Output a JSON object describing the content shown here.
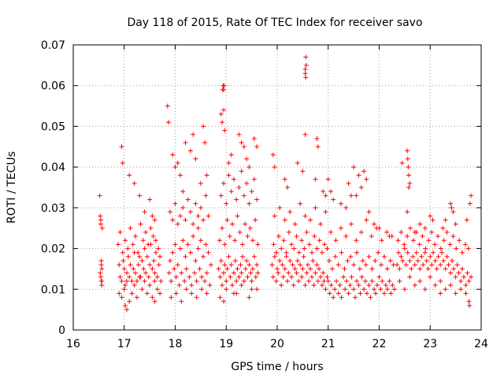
{
  "chart_data": {
    "type": "scatter",
    "title": "Day 118 of 2015, Rate Of TEC Index for receiver savo",
    "xlabel": "GPS time / hours",
    "ylabel": "ROTI / TECUs",
    "xlim": [
      16,
      24
    ],
    "ylim": [
      0,
      0.07
    ],
    "x_ticks": [
      "16",
      "17",
      "18",
      "19",
      "20",
      "21",
      "22",
      "23",
      "24"
    ],
    "y_ticks": [
      "0",
      "0.01",
      "0.02",
      "0.03",
      "0.04",
      "0.05",
      "0.06",
      "0.07"
    ],
    "grid": true,
    "marker": "+",
    "color": "#ff0000",
    "series": [
      {
        "x": [
          16.52,
          16.53,
          16.54,
          16.55,
          16.56,
          16.53,
          16.54,
          16.55,
          16.56,
          16.57,
          16.54,
          16.55,
          16.56,
          16.88,
          16.9,
          16.92,
          16.95,
          16.98,
          17.0,
          17.02,
          17.05,
          17.08,
          17.1,
          17.12,
          17.15,
          17.18,
          17.2,
          17.22,
          17.25,
          17.28,
          17.3,
          17.32,
          17.35,
          17.38,
          17.4,
          17.42,
          17.45,
          17.48,
          17.5,
          17.52,
          17.55,
          17.58,
          17.6,
          17.62,
          17.65,
          17.68,
          17.7,
          17.72,
          16.9,
          16.95,
          17.0,
          17.05,
          17.1,
          17.15,
          17.2,
          17.25,
          17.3,
          17.35,
          17.4,
          17.45,
          17.5,
          17.55,
          17.6,
          17.65,
          17.7,
          16.92,
          16.97,
          17.02,
          17.07,
          17.12,
          17.17,
          17.22,
          17.27,
          17.32,
          17.37,
          17.42,
          17.47,
          17.52,
          17.57,
          17.62,
          17.67,
          16.95,
          16.97,
          17.1,
          17.2,
          17.3,
          17.4,
          17.5,
          17.6,
          17.02,
          17.05,
          17.6,
          17.55,
          17.9,
          17.95,
          18.0,
          18.05,
          18.1,
          18.15,
          18.2,
          18.25,
          18.3,
          18.35,
          18.4,
          18.45,
          18.5,
          18.55,
          18.6,
          18.65,
          18.7,
          17.88,
          17.92,
          17.98,
          18.02,
          18.08,
          18.12,
          18.18,
          18.22,
          18.28,
          18.32,
          18.38,
          18.42,
          18.48,
          18.52,
          18.58,
          18.62,
          18.68,
          17.9,
          17.95,
          18.0,
          18.05,
          18.1,
          18.15,
          18.2,
          18.25,
          18.3,
          18.35,
          18.4,
          18.45,
          18.5,
          18.55,
          18.6,
          18.65,
          17.85,
          17.87,
          18.2,
          18.3,
          18.35,
          18.4,
          18.55,
          18.58,
          18.62,
          18.5,
          18.1,
          18.05,
          18.15,
          17.95,
          18.0,
          18.45,
          17.92,
          18.02,
          18.12,
          18.22,
          18.32,
          18.42,
          18.52,
          18.62,
          18.85,
          18.88,
          18.9,
          18.92,
          18.95,
          18.97,
          19.0,
          19.02,
          19.05,
          19.08,
          19.1,
          19.12,
          19.15,
          19.18,
          19.2,
          19.22,
          19.25,
          19.28,
          19.3,
          19.32,
          19.35,
          19.38,
          19.4,
          19.42,
          19.45,
          19.48,
          19.5,
          19.52,
          19.55,
          19.58,
          19.6,
          19.62,
          18.87,
          18.92,
          18.97,
          19.02,
          19.07,
          19.12,
          19.17,
          19.22,
          19.27,
          19.32,
          19.37,
          19.42,
          19.47,
          19.52,
          19.57,
          19.62,
          18.9,
          18.95,
          19.0,
          19.05,
          19.1,
          19.15,
          19.2,
          19.25,
          19.3,
          19.35,
          19.4,
          19.45,
          19.5,
          19.55,
          19.6,
          18.93,
          18.94,
          18.95,
          18.96,
          18.9,
          18.92,
          18.95,
          18.97,
          19.25,
          19.3,
          19.35,
          19.55,
          19.6,
          19.4,
          19.45,
          19.05,
          19.1,
          18.88,
          19.0,
          19.15,
          19.3,
          19.45,
          19.6,
          18.95,
          19.2,
          19.5,
          19.9,
          19.92,
          19.95,
          19.98,
          20.0,
          20.02,
          20.05,
          20.08,
          20.1,
          20.12,
          20.15,
          20.18,
          20.2,
          20.22,
          20.25,
          20.28,
          20.3,
          20.32,
          20.35,
          20.38,
          20.4,
          20.42,
          20.45,
          20.48,
          20.5,
          20.52,
          20.55,
          20.58,
          20.6,
          20.62,
          20.65,
          20.68,
          20.7,
          20.72,
          20.75,
          20.78,
          20.8,
          20.82,
          20.85,
          20.88,
          20.9,
          20.92,
          20.95,
          20.98,
          19.93,
          19.98,
          20.03,
          20.08,
          20.13,
          20.18,
          20.23,
          20.28,
          20.33,
          20.38,
          20.43,
          20.48,
          20.53,
          20.58,
          20.63,
          20.68,
          20.73,
          20.78,
          20.83,
          20.88,
          20.93,
          20.98,
          19.95,
          20.05,
          20.15,
          20.25,
          20.35,
          20.45,
          20.55,
          20.65,
          20.75,
          20.85,
          20.95,
          19.92,
          19.95,
          20.15,
          20.2,
          20.4,
          20.5,
          20.55,
          20.55,
          20.56,
          20.57,
          20.55,
          20.56,
          20.78,
          20.8,
          20.75,
          20.9,
          20.95,
          21.0,
          21.03,
          21.06,
          21.1,
          21.13,
          21.16,
          21.2,
          21.23,
          21.26,
          21.3,
          21.33,
          21.36,
          21.4,
          21.43,
          21.46,
          21.5,
          21.53,
          21.56,
          21.6,
          21.63,
          21.66,
          21.7,
          21.73,
          21.76,
          21.8,
          21.83,
          21.86,
          21.9,
          21.93,
          21.96,
          22.0,
          22.03,
          22.06,
          22.1,
          22.13,
          22.16,
          22.2,
          22.23,
          22.26,
          22.3,
          21.02,
          21.08,
          21.14,
          21.2,
          21.26,
          21.32,
          21.38,
          21.44,
          21.5,
          21.56,
          21.62,
          21.68,
          21.74,
          21.8,
          21.86,
          21.92,
          21.98,
          22.04,
          22.1,
          22.16,
          22.22,
          22.28,
          21.05,
          21.15,
          21.25,
          21.35,
          21.45,
          21.55,
          21.65,
          21.75,
          21.85,
          21.95,
          22.05,
          22.15,
          22.25,
          21.0,
          21.05,
          21.25,
          21.4,
          21.5,
          21.55,
          21.6,
          21.65,
          21.7,
          21.75,
          21.45,
          21.35,
          21.1,
          21.8,
          21.9,
          22.0,
          22.2,
          22.35,
          22.38,
          22.4,
          22.43,
          22.46,
          22.5,
          22.53,
          22.56,
          22.6,
          22.63,
          22.66,
          22.7,
          22.73,
          22.76,
          22.8,
          22.83,
          22.86,
          22.9,
          22.93,
          22.96,
          23.0,
          23.03,
          23.06,
          23.1,
          23.13,
          23.16,
          23.2,
          23.23,
          23.26,
          23.3,
          23.33,
          23.36,
          23.4,
          23.43,
          23.46,
          23.5,
          23.53,
          23.56,
          23.6,
          23.63,
          23.66,
          23.7,
          23.73,
          23.76,
          23.8,
          22.37,
          22.43,
          22.49,
          22.55,
          22.61,
          22.67,
          22.73,
          22.79,
          22.85,
          22.91,
          22.97,
          23.03,
          23.09,
          23.15,
          23.21,
          23.27,
          23.33,
          23.39,
          23.45,
          23.51,
          23.57,
          23.63,
          23.69,
          23.75,
          22.4,
          22.5,
          22.6,
          22.7,
          22.8,
          22.9,
          23.0,
          23.1,
          23.2,
          23.3,
          23.4,
          23.5,
          23.6,
          23.7,
          22.55,
          22.56,
          22.57,
          22.58,
          22.6,
          22.58,
          22.45,
          22.55,
          23.0,
          22.8,
          22.7,
          23.05,
          23.4,
          23.45,
          23.42,
          23.5,
          23.25,
          23.3,
          23.8,
          23.78,
          23.76,
          23.77,
          23.72,
          23.2,
          22.9
        ],
        "y": [
          0.033,
          0.028,
          0.026,
          0.017,
          0.015,
          0.014,
          0.013,
          0.012,
          0.011,
          0.025,
          0.027,
          0.016,
          0.012,
          0.021,
          0.016,
          0.013,
          0.012,
          0.017,
          0.015,
          0.011,
          0.014,
          0.018,
          0.013,
          0.016,
          0.012,
          0.015,
          0.019,
          0.014,
          0.012,
          0.016,
          0.018,
          0.013,
          0.017,
          0.015,
          0.02,
          0.014,
          0.018,
          0.013,
          0.016,
          0.021,
          0.015,
          0.017,
          0.014,
          0.019,
          0.013,
          0.016,
          0.018,
          0.012,
          0.009,
          0.008,
          0.01,
          0.012,
          0.007,
          0.009,
          0.011,
          0.008,
          0.013,
          0.01,
          0.012,
          0.009,
          0.011,
          0.008,
          0.012,
          0.01,
          0.009,
          0.024,
          0.019,
          0.022,
          0.02,
          0.025,
          0.021,
          0.023,
          0.019,
          0.026,
          0.022,
          0.024,
          0.021,
          0.025,
          0.023,
          0.022,
          0.02,
          0.045,
          0.041,
          0.038,
          0.036,
          0.033,
          0.029,
          0.032,
          0.027,
          0.006,
          0.005,
          0.007,
          0.028,
          0.017,
          0.019,
          0.021,
          0.016,
          0.02,
          0.022,
          0.018,
          0.021,
          0.019,
          0.023,
          0.017,
          0.02,
          0.022,
          0.018,
          0.021,
          0.019,
          0.016,
          0.014,
          0.012,
          0.015,
          0.013,
          0.011,
          0.014,
          0.012,
          0.015,
          0.013,
          0.011,
          0.014,
          0.012,
          0.015,
          0.013,
          0.012,
          0.014,
          0.011,
          0.029,
          0.027,
          0.031,
          0.026,
          0.028,
          0.03,
          0.027,
          0.032,
          0.029,
          0.026,
          0.031,
          0.028,
          0.03,
          0.027,
          0.033,
          0.028,
          0.055,
          0.051,
          0.046,
          0.044,
          0.048,
          0.042,
          0.05,
          0.046,
          0.038,
          0.036,
          0.038,
          0.041,
          0.034,
          0.043,
          0.04,
          0.025,
          0.008,
          0.009,
          0.007,
          0.01,
          0.009,
          0.008,
          0.01,
          0.009,
          0.015,
          0.013,
          0.017,
          0.011,
          0.014,
          0.016,
          0.012,
          0.015,
          0.018,
          0.013,
          0.016,
          0.011,
          0.014,
          0.017,
          0.012,
          0.015,
          0.013,
          0.016,
          0.014,
          0.018,
          0.012,
          0.015,
          0.017,
          0.013,
          0.016,
          0.014,
          0.012,
          0.015,
          0.018,
          0.013,
          0.016,
          0.014,
          0.022,
          0.025,
          0.021,
          0.027,
          0.023,
          0.026,
          0.022,
          0.028,
          0.024,
          0.021,
          0.026,
          0.023,
          0.025,
          0.022,
          0.027,
          0.021,
          0.033,
          0.036,
          0.031,
          0.038,
          0.034,
          0.037,
          0.032,
          0.035,
          0.039,
          0.033,
          0.036,
          0.031,
          0.034,
          0.037,
          0.032,
          0.059,
          0.06,
          0.059,
          0.06,
          0.053,
          0.051,
          0.054,
          0.049,
          0.048,
          0.046,
          0.045,
          0.047,
          0.045,
          0.042,
          0.04,
          0.041,
          0.043,
          0.008,
          0.01,
          0.009,
          0.011,
          0.008,
          0.01,
          0.007,
          0.009,
          0.01,
          0.016,
          0.013,
          0.018,
          0.012,
          0.015,
          0.014,
          0.017,
          0.011,
          0.016,
          0.013,
          0.015,
          0.018,
          0.012,
          0.014,
          0.017,
          0.013,
          0.016,
          0.011,
          0.015,
          0.014,
          0.017,
          0.012,
          0.016,
          0.013,
          0.015,
          0.018,
          0.011,
          0.014,
          0.016,
          0.012,
          0.015,
          0.013,
          0.017,
          0.011,
          0.014,
          0.016,
          0.012,
          0.015,
          0.013,
          0.011,
          0.014,
          0.012,
          0.01,
          0.013,
          0.021,
          0.019,
          0.023,
          0.02,
          0.022,
          0.019,
          0.024,
          0.021,
          0.02,
          0.023,
          0.019,
          0.022,
          0.02,
          0.024,
          0.021,
          0.019,
          0.023,
          0.02,
          0.022,
          0.019,
          0.021,
          0.02,
          0.028,
          0.03,
          0.027,
          0.029,
          0.026,
          0.031,
          0.028,
          0.027,
          0.03,
          0.026,
          0.029,
          0.043,
          0.04,
          0.037,
          0.035,
          0.041,
          0.039,
          0.048,
          0.064,
          0.067,
          0.065,
          0.063,
          0.062,
          0.047,
          0.045,
          0.037,
          0.034,
          0.033,
          0.012,
          0.009,
          0.011,
          0.008,
          0.01,
          0.012,
          0.009,
          0.011,
          0.008,
          0.013,
          0.01,
          0.012,
          0.009,
          0.011,
          0.013,
          0.01,
          0.008,
          0.012,
          0.011,
          0.009,
          0.013,
          0.01,
          0.012,
          0.009,
          0.011,
          0.008,
          0.012,
          0.01,
          0.009,
          0.011,
          0.013,
          0.01,
          0.012,
          0.009,
          0.011,
          0.01,
          0.012,
          0.009,
          0.011,
          0.01,
          0.017,
          0.015,
          0.018,
          0.016,
          0.019,
          0.015,
          0.017,
          0.018,
          0.016,
          0.019,
          0.015,
          0.017,
          0.016,
          0.018,
          0.015,
          0.017,
          0.019,
          0.016,
          0.018,
          0.015,
          0.017,
          0.016,
          0.024,
          0.022,
          0.025,
          0.023,
          0.026,
          0.022,
          0.024,
          0.027,
          0.023,
          0.025,
          0.022,
          0.024,
          0.023,
          0.037,
          0.034,
          0.031,
          0.036,
          0.04,
          0.033,
          0.038,
          0.035,
          0.039,
          0.037,
          0.033,
          0.03,
          0.032,
          0.029,
          0.026,
          0.025,
          0.023,
          0.016,
          0.019,
          0.015,
          0.018,
          0.017,
          0.02,
          0.016,
          0.019,
          0.017,
          0.015,
          0.018,
          0.016,
          0.019,
          0.017,
          0.015,
          0.018,
          0.016,
          0.019,
          0.017,
          0.015,
          0.018,
          0.016,
          0.019,
          0.017,
          0.015,
          0.018,
          0.016,
          0.019,
          0.017,
          0.015,
          0.018,
          0.016,
          0.014,
          0.017,
          0.015,
          0.013,
          0.016,
          0.014,
          0.012,
          0.015,
          0.013,
          0.011,
          0.014,
          0.012,
          0.013,
          0.022,
          0.024,
          0.021,
          0.023,
          0.025,
          0.022,
          0.024,
          0.021,
          0.023,
          0.02,
          0.022,
          0.024,
          0.021,
          0.023,
          0.02,
          0.022,
          0.024,
          0.021,
          0.023,
          0.02,
          0.022,
          0.019,
          0.021,
          0.02,
          0.012,
          0.01,
          0.013,
          0.011,
          0.012,
          0.01,
          0.013,
          0.011,
          0.012,
          0.01,
          0.011,
          0.009,
          0.01,
          0.009,
          0.044,
          0.042,
          0.04,
          0.038,
          0.036,
          0.035,
          0.041,
          0.029,
          0.028,
          0.026,
          0.024,
          0.027,
          0.031,
          0.029,
          0.03,
          0.026,
          0.025,
          0.027,
          0.033,
          0.031,
          0.007,
          0.006,
          0.027,
          0.009,
          0.025
        ]
      }
    ]
  }
}
